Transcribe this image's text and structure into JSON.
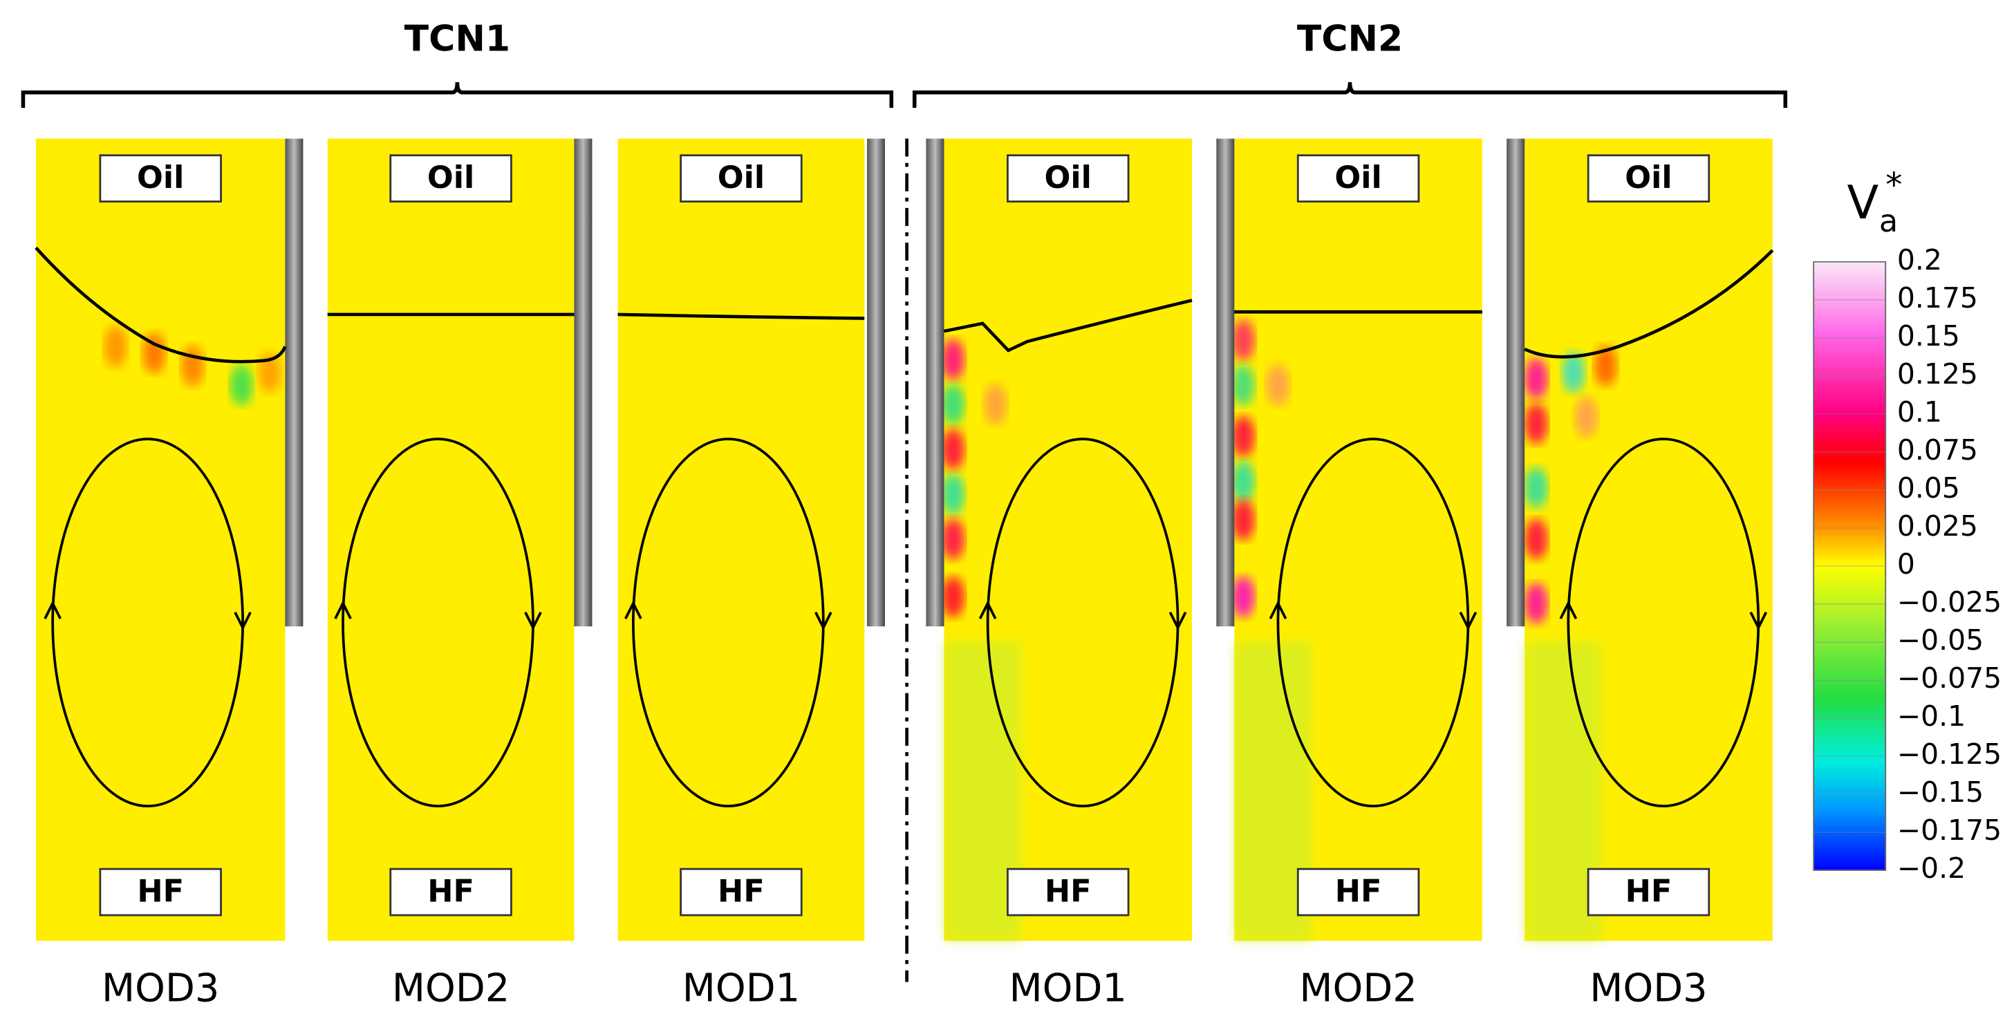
{
  "groups": [
    {
      "title": "TCN1"
    },
    {
      "title": "TCN2"
    }
  ],
  "panels": [
    {
      "top": "Oil",
      "bottom": "HF",
      "label": "MOD3"
    },
    {
      "top": "Oil",
      "bottom": "HF",
      "label": "MOD2"
    },
    {
      "top": "Oil",
      "bottom": "HF",
      "label": "MOD1"
    },
    {
      "top": "Oil",
      "bottom": "HF",
      "label": "MOD1"
    },
    {
      "top": "Oil",
      "bottom": "HF",
      "label": "MOD2"
    },
    {
      "top": "Oil",
      "bottom": "HF",
      "label": "MOD3"
    }
  ],
  "colorbar": {
    "title": "V",
    "subscript": "a",
    "superscript": "*",
    "ticks": [
      "0.2",
      "0.175",
      "0.15",
      "0.125",
      "0.1",
      "0.075",
      "0.05",
      "0.025",
      "0",
      "−0.025",
      "−0.05",
      "−0.075",
      "−0.1",
      "−0.125",
      "−0.15",
      "−0.175",
      "−0.2"
    ]
  }
}
